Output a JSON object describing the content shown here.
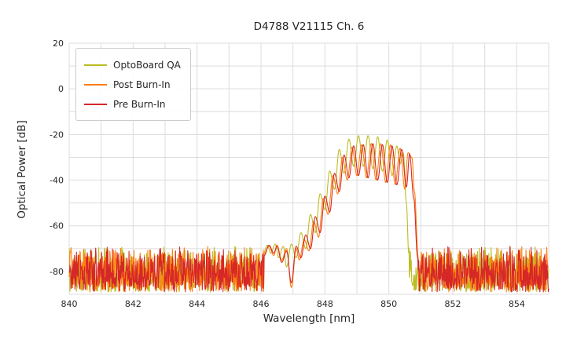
{
  "chart_data": {
    "type": "line",
    "title": "D4788 V21115 Ch. 6",
    "xlabel": "Wavelength [nm]",
    "ylabel": "Optical Power [dB]",
    "xlim": [
      840,
      855
    ],
    "ylim": [
      -90,
      20
    ],
    "x_ticks": [
      840,
      842,
      844,
      846,
      848,
      850,
      852,
      854
    ],
    "y_ticks": [
      20,
      0,
      -20,
      -40,
      -60,
      -80
    ],
    "grid": {
      "x_step": 1,
      "y_step": 10,
      "color": "#dcdcdc"
    },
    "legend": {
      "position": "upper-left"
    },
    "noise_band": {
      "top": -69,
      "bottom": -89
    },
    "series": [
      {
        "name": "OptoBoard QA",
        "color": "#bcbd22",
        "seed": 7,
        "noise_regions": [
          [
            840.0,
            846.04
          ],
          [
            850.63,
            855.0
          ]
        ],
        "points": [
          [
            846.05,
            -73
          ],
          [
            846.2,
            -68.5
          ],
          [
            846.3,
            -72
          ],
          [
            846.45,
            -68
          ],
          [
            846.55,
            -74
          ],
          [
            846.7,
            -69
          ],
          [
            846.8,
            -78
          ],
          [
            846.95,
            -68
          ],
          [
            847.1,
            -74
          ],
          [
            847.25,
            -63
          ],
          [
            847.4,
            -70
          ],
          [
            847.55,
            -55
          ],
          [
            847.7,
            -63
          ],
          [
            847.85,
            -46
          ],
          [
            848.0,
            -53
          ],
          [
            848.15,
            -36
          ],
          [
            848.3,
            -44
          ],
          [
            848.45,
            -26.5
          ],
          [
            848.6,
            -37
          ],
          [
            848.75,
            -22
          ],
          [
            848.9,
            -34
          ],
          [
            849.05,
            -20.5
          ],
          [
            849.2,
            -34
          ],
          [
            849.35,
            -20.5
          ],
          [
            849.5,
            -35
          ],
          [
            849.65,
            -21
          ],
          [
            849.8,
            -36
          ],
          [
            849.95,
            -22.5
          ],
          [
            850.1,
            -38
          ],
          [
            850.25,
            -25
          ],
          [
            850.35,
            -33
          ],
          [
            850.45,
            -28
          ],
          [
            850.55,
            -50
          ],
          [
            850.62,
            -72
          ]
        ]
      },
      {
        "name": "Post Burn-In",
        "color": "#ff7f0e",
        "seed": 13,
        "noise_regions": [
          [
            840.0,
            846.09
          ],
          [
            850.93,
            855.0
          ]
        ],
        "points": [
          [
            846.1,
            -72
          ],
          [
            846.25,
            -69
          ],
          [
            846.4,
            -73
          ],
          [
            846.5,
            -68.5
          ],
          [
            846.65,
            -75
          ],
          [
            846.8,
            -70
          ],
          [
            846.95,
            -87
          ],
          [
            847.1,
            -70
          ],
          [
            847.2,
            -75
          ],
          [
            847.35,
            -66
          ],
          [
            847.5,
            -71
          ],
          [
            847.65,
            -58
          ],
          [
            847.8,
            -65
          ],
          [
            847.95,
            -48
          ],
          [
            848.1,
            -55
          ],
          [
            848.25,
            -38
          ],
          [
            848.4,
            -46
          ],
          [
            848.55,
            -30
          ],
          [
            848.7,
            -40
          ],
          [
            848.85,
            -25.5
          ],
          [
            849.0,
            -38
          ],
          [
            849.15,
            -24.5
          ],
          [
            849.3,
            -39
          ],
          [
            849.45,
            -24
          ],
          [
            849.6,
            -40
          ],
          [
            849.75,
            -24
          ],
          [
            849.9,
            -41
          ],
          [
            850.05,
            -24.5
          ],
          [
            850.2,
            -42
          ],
          [
            850.35,
            -26
          ],
          [
            850.5,
            -44
          ],
          [
            850.6,
            -28
          ],
          [
            850.72,
            -30
          ],
          [
            850.8,
            -45
          ],
          [
            850.92,
            -74
          ]
        ]
      },
      {
        "name": "Pre Burn-In",
        "color": "#d62728",
        "seed": 21,
        "noise_regions": [
          [
            840.0,
            846.09
          ],
          [
            850.92,
            855.0
          ]
        ],
        "points": [
          [
            846.1,
            -73
          ],
          [
            846.25,
            -68.5
          ],
          [
            846.4,
            -72
          ],
          [
            846.5,
            -69
          ],
          [
            846.65,
            -76
          ],
          [
            846.8,
            -71
          ],
          [
            846.95,
            -85
          ],
          [
            847.1,
            -69
          ],
          [
            847.25,
            -74
          ],
          [
            847.4,
            -64
          ],
          [
            847.55,
            -70
          ],
          [
            847.7,
            -56
          ],
          [
            847.85,
            -63
          ],
          [
            848.0,
            -47
          ],
          [
            848.15,
            -54
          ],
          [
            848.3,
            -37
          ],
          [
            848.45,
            -45
          ],
          [
            848.6,
            -29
          ],
          [
            848.75,
            -39
          ],
          [
            848.9,
            -25
          ],
          [
            849.05,
            -38
          ],
          [
            849.2,
            -24.5
          ],
          [
            849.35,
            -39
          ],
          [
            849.5,
            -24
          ],
          [
            849.65,
            -40
          ],
          [
            849.8,
            -24.5
          ],
          [
            849.95,
            -41
          ],
          [
            850.1,
            -25
          ],
          [
            850.25,
            -42
          ],
          [
            850.4,
            -26.5
          ],
          [
            850.55,
            -43
          ],
          [
            850.65,
            -28.5
          ],
          [
            850.78,
            -48
          ],
          [
            850.9,
            -74
          ]
        ]
      }
    ]
  }
}
